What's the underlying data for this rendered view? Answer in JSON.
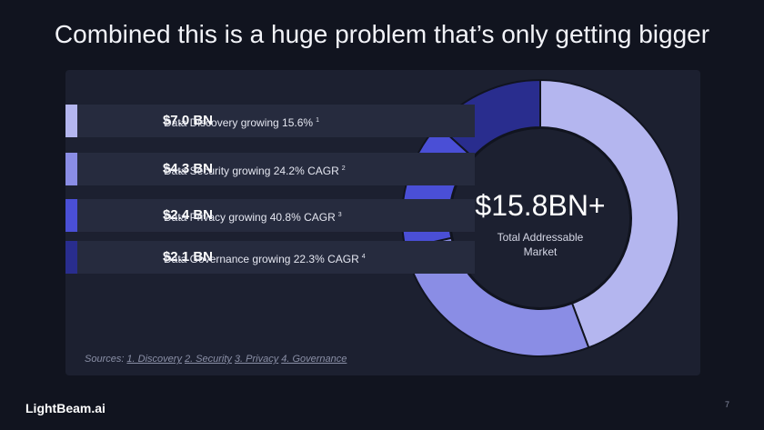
{
  "title": "Combined this is a huge problem that’s only getting bigger",
  "chart_data": {
    "type": "donut",
    "categories": [
      "Data Discovery growing 15.6%",
      "Data Security growing 24.2% CAGR",
      "Data Privacy growing 40.8% CAGR",
      "Data Governance growing 22.3% CAGR"
    ],
    "footnotes": [
      "1",
      "2",
      "3",
      "4"
    ],
    "values": [
      7.0,
      4.3,
      2.4,
      2.1
    ],
    "value_labels": [
      "$7.0 BN",
      "$4.3 BN",
      "$2.4 BN",
      "$2.1 BN"
    ],
    "colors": [
      "#b4b6ef",
      "#8a8de5",
      "#4a4fd6",
      "#292d8e"
    ],
    "center_value": "$15.8BN+",
    "center_label": "Total Addressable Market"
  },
  "sources": {
    "label": "Sources:",
    "links": [
      "1. Discovery",
      "2. Security",
      "3. Privacy",
      "4. Governance"
    ]
  },
  "logo": "LightBeam.ai",
  "page_number": "7"
}
